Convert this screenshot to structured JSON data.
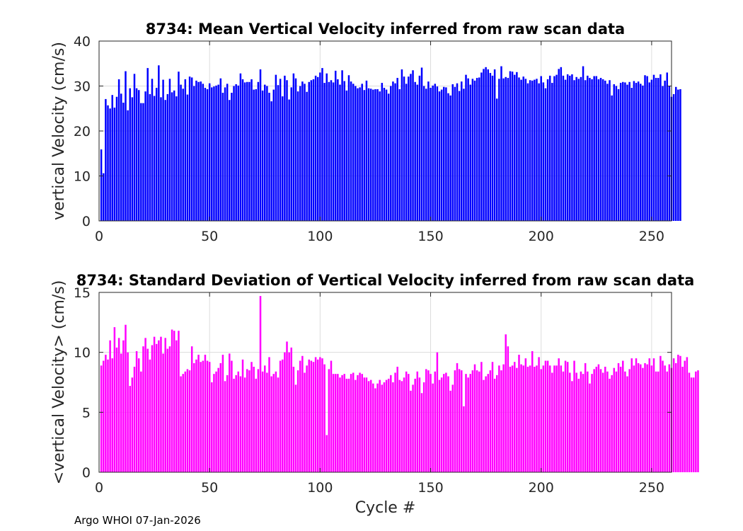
{
  "chart_data": [
    {
      "type": "bar",
      "title": "8734: Mean Vertical Velocity inferred from raw scan data",
      "xlabel": "",
      "ylabel": "vertical Velocity (cm/s)",
      "xlim": [
        0,
        259
      ],
      "ylim": [
        0,
        40
      ],
      "xticks": [
        0,
        50,
        100,
        150,
        200,
        250
      ],
      "yticks": [
        0,
        10,
        20,
        30,
        40
      ],
      "grid": true,
      "color": "#0000ff",
      "x_start": 1,
      "values": [
        15.9,
        10.6,
        27.1,
        25.7,
        25.0,
        28.0,
        25.2,
        27.6,
        31.5,
        28.3,
        26.3,
        33.3,
        24.6,
        29.5,
        27.5,
        32.7,
        29.5,
        29.1,
        26.2,
        26.2,
        28.8,
        34.0,
        28.2,
        31.6,
        27.8,
        29.6,
        34.6,
        27.5,
        31.4,
        26.9,
        28.2,
        31.6,
        28.6,
        29.0,
        27.7,
        33.2,
        30.3,
        29.4,
        31.5,
        28.1,
        32.1,
        31.9,
        30.0,
        31.2,
        30.9,
        31.0,
        30.5,
        29.6,
        29.3,
        30.6,
        29.7,
        29.9,
        30.1,
        30.3,
        31.7,
        28.5,
        29.7,
        30.5,
        26.9,
        28.5,
        30.0,
        30.4,
        30.1,
        32.8,
        31.5,
        30.8,
        30.9,
        30.9,
        31.5,
        29.2,
        29.3,
        30.9,
        33.7,
        29.0,
        30.3,
        30.0,
        28.5,
        26.6,
        29.2,
        32.5,
        30.2,
        31.6,
        27.7,
        32.3,
        31.3,
        27.0,
        29.7,
        32.8,
        31.7,
        28.8,
        30.0,
        31.0,
        30.5,
        28.7,
        30.9,
        31.3,
        31.5,
        32.3,
        32.0,
        33.0,
        34.0,
        30.7,
        32.8,
        30.9,
        31.3,
        30.8,
        33.4,
        31.5,
        30.3,
        33.5,
        31.1,
        29.0,
        32.4,
        31.0,
        30.5,
        30.0,
        29.5,
        29.7,
        30.5,
        29.1,
        31.2,
        29.5,
        29.4,
        29.2,
        29.3,
        29.3,
        28.8,
        30.7,
        29.6,
        29.2,
        28.3,
        30.0,
        31.0,
        30.6,
        31.8,
        29.3,
        33.7,
        32.1,
        30.5,
        32.1,
        32.7,
        33.5,
        30.9,
        30.3,
        32.3,
        34.1,
        30.0,
        29.4,
        31.0,
        29.6,
        30.1,
        30.5,
        29.9,
        28.8,
        29.2,
        29.8,
        29.7,
        28.4,
        27.9,
        30.4,
        29.8,
        30.6,
        28.9,
        31.0,
        29.4,
        32.5,
        31.7,
        30.3,
        31.6,
        31.2,
        31.8,
        31.9,
        33.0,
        33.8,
        34.2,
        33.7,
        32.9,
        32.3,
        33.7,
        27.2,
        31.6,
        34.4,
        31.7,
        32.0,
        31.8,
        33.3,
        33.2,
        32.5,
        33.1,
        31.9,
        31.4,
        32.1,
        31.6,
        30.6,
        31.3,
        31.2,
        31.4,
        31.6,
        30.6,
        32.2,
        30.8,
        29.5,
        31.5,
        32.3,
        30.7,
        32.2,
        32.5,
        33.8,
        34.2,
        32.3,
        31.4,
        32.6,
        32.3,
        32.6,
        31.3,
        32.0,
        31.6,
        32.0,
        34.4,
        31.3,
        32.3,
        31.8,
        31.5,
        32.2,
        32.2,
        31.5,
        31.8,
        31.5,
        31.2,
        30.5,
        31.3,
        27.9,
        30.4,
        30.0,
        29.3,
        30.7,
        30.9,
        30.8,
        30.3,
        30.9,
        29.6,
        31.1,
        30.7,
        31.0,
        30.5,
        30.1,
        32.4,
        32.2,
        30.8,
        31.4,
        32.5,
        31.8,
        31.8,
        32.6,
        30.0,
        31.2,
        33.0,
        30.0,
        27.6,
        28.2,
        29.8,
        29.2,
        29.3
      ]
    },
    {
      "type": "bar",
      "title": "8734: Standard Deviation of Vertical Velocity inferred from raw scan data",
      "xlabel": "Cycle #",
      "ylabel": "<vertical Velocity> (cm/s)",
      "xlim": [
        0,
        259
      ],
      "ylim": [
        0,
        15
      ],
      "xticks": [
        0,
        50,
        100,
        150,
        200,
        250
      ],
      "yticks": [
        0,
        5,
        10,
        15
      ],
      "grid": true,
      "color": "#ff00ff",
      "x_start": 1,
      "values": [
        8.9,
        9.3,
        9.8,
        9.4,
        11.0,
        9.5,
        12.1,
        10.4,
        11.2,
        9.9,
        11.0,
        12.3,
        10.0,
        7.2,
        7.9,
        8.8,
        10.1,
        9.5,
        8.4,
        10.5,
        11.2,
        10.3,
        9.4,
        10.6,
        11.3,
        10.7,
        11.0,
        11.3,
        9.9,
        11.2,
        10.3,
        10.5,
        11.9,
        11.8,
        11.0,
        11.8,
        8.0,
        8.2,
        8.4,
        8.6,
        8.5,
        10.5,
        9.1,
        9.4,
        9.8,
        9.2,
        9.3,
        9.8,
        9.3,
        9.2,
        7.5,
        8.2,
        8.4,
        8.7,
        9.1,
        9.8,
        7.6,
        8.1,
        9.9,
        9.3,
        7.8,
        8.1,
        8.4,
        8.0,
        9.4,
        7.9,
        8.6,
        8.5,
        9.2,
        8.8,
        7.8,
        8.6,
        14.7,
        8.4,
        8.9,
        8.3,
        9.6,
        8.0,
        8.2,
        8.4,
        7.9,
        9.3,
        9.4,
        10.0,
        10.9,
        10.0,
        10.4,
        8.8,
        7.3,
        8.5,
        9.3,
        9.7,
        8.3,
        8.9,
        9.4,
        9.3,
        9.2,
        9.6,
        9.4,
        9.6,
        9.5,
        9.0,
        3.1,
        8.6,
        9.3,
        8.2,
        8.2,
        8.2,
        7.9,
        8.1,
        8.2,
        7.8,
        7.8,
        8.2,
        8.3,
        7.7,
        8.1,
        8.3,
        8.2,
        7.9,
        7.9,
        7.6,
        7.7,
        7.4,
        7.0,
        7.4,
        7.7,
        7.3,
        7.5,
        7.7,
        7.8,
        8.1,
        7.5,
        8.3,
        8.8,
        7.7,
        7.6,
        7.9,
        8.4,
        8.2,
        6.8,
        7.3,
        7.8,
        8.4,
        7.9,
        6.6,
        7.5,
        8.6,
        8.5,
        8.2,
        7.4,
        8.4,
        10.0,
        7.7,
        7.9,
        8.2,
        8.3,
        8.0,
        6.8,
        7.3,
        8.5,
        9.1,
        8.6,
        8.5,
        5.5,
        8.2,
        7.9,
        8.2,
        8.5,
        9.0,
        8.5,
        8.4,
        9.2,
        7.7,
        8.0,
        8.2,
        8.5,
        9.2,
        7.8,
        8.1,
        8.9,
        8.5,
        9.0,
        11.5,
        10.5,
        8.8,
        8.9,
        9.2,
        8.7,
        9.8,
        9.0,
        8.9,
        9.5,
        8.8,
        8.9,
        10.1,
        8.8,
        8.9,
        9.6,
        8.6,
        8.9,
        9.3,
        9.3,
        8.9,
        8.3,
        8.9,
        8.9,
        9.5,
        8.9,
        8.4,
        9.3,
        9.2,
        8.3,
        7.6,
        9.3,
        8.3,
        7.8,
        8.4,
        8.2,
        9.1,
        8.4,
        7.4,
        8.2,
        8.6,
        8.8,
        9.0,
        8.6,
        8.3,
        8.8,
        8.4,
        7.8,
        8.1,
        8.7,
        8.4,
        9.1,
        8.8,
        9.3,
        8.4,
        8.0,
        8.6,
        9.5,
        8.9,
        9.5,
        9.1,
        9.0,
        8.7,
        9.1,
        9.0,
        9.5,
        8.9,
        9.5,
        8.4,
        8.4,
        9.7,
        9.3,
        8.9,
        8.4,
        9.0,
        8.7,
        9.5,
        9.1,
        9.8,
        9.7,
        8.8,
        9.3,
        9.6,
        8.3,
        7.9,
        7.9,
        8.4,
        8.5
      ]
    }
  ],
  "footer": "Argo WHOI 07-Jan-2026"
}
